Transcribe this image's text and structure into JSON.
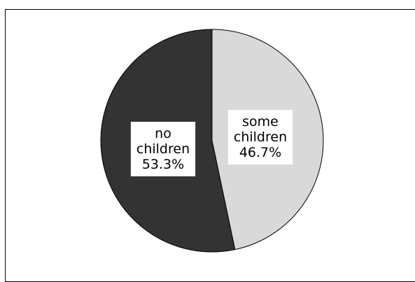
{
  "chart_data": {
    "type": "pie",
    "title": "",
    "slices": [
      {
        "lines": [
          "some",
          "children",
          "46.7%"
        ],
        "value": 46.7,
        "color": "#d9d9d9"
      },
      {
        "lines": [
          "no",
          "children",
          "53.3%"
        ],
        "value": 53.3,
        "color": "#333333"
      }
    ],
    "start_angle_deg": 0,
    "direction": "clockwise",
    "label_box_color": "#ffffff",
    "outline_color": "#000000",
    "legend": "none"
  }
}
